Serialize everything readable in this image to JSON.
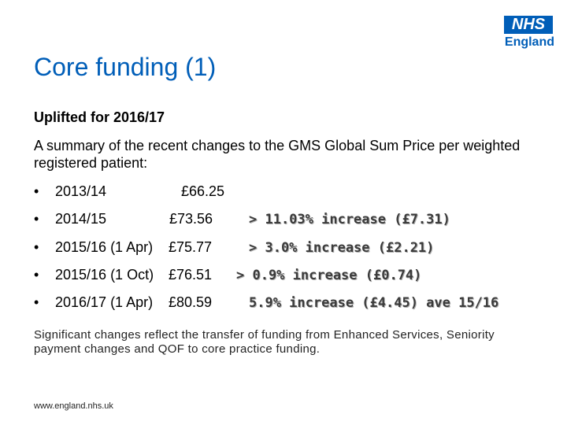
{
  "logo": {
    "box_text": "NHS",
    "word": "England"
  },
  "title": "Core funding (1)",
  "subtitle": "Uplifted for 2016/17",
  "intro": "A summary of the recent changes to the GMS Global Sum Price per weighted registered patient:",
  "bullets": [
    {
      "marker": "•",
      "period": "2013/14",
      "price": "£66.25",
      "change": ""
    },
    {
      "marker": "•",
      "period": "2014/15",
      "price": "£73.56",
      "change": "> 11.03% increase (£7.31)"
    },
    {
      "marker": "•",
      "period": "2015/16 (1 Apr)",
      "price": "£75.77",
      "change": "> 3.0% increase (£2.21)"
    },
    {
      "marker": "•",
      "period": "2015/16 (1 Oct)",
      "price": "£76.51",
      "change": "> 0.9% increase (£0.74)"
    },
    {
      "marker": "•",
      "period": "2016/17 (1 Apr)",
      "price": "£80.59",
      "change": "5.9% increase (£4.45) ave 15/16"
    }
  ],
  "footnote": "Significant changes reflect the transfer of funding from Enhanced Services, Seniority  payment changes and QOF to core practice funding.",
  "url": "www.england.nhs.uk",
  "colors": {
    "accent": "#005eb8"
  }
}
